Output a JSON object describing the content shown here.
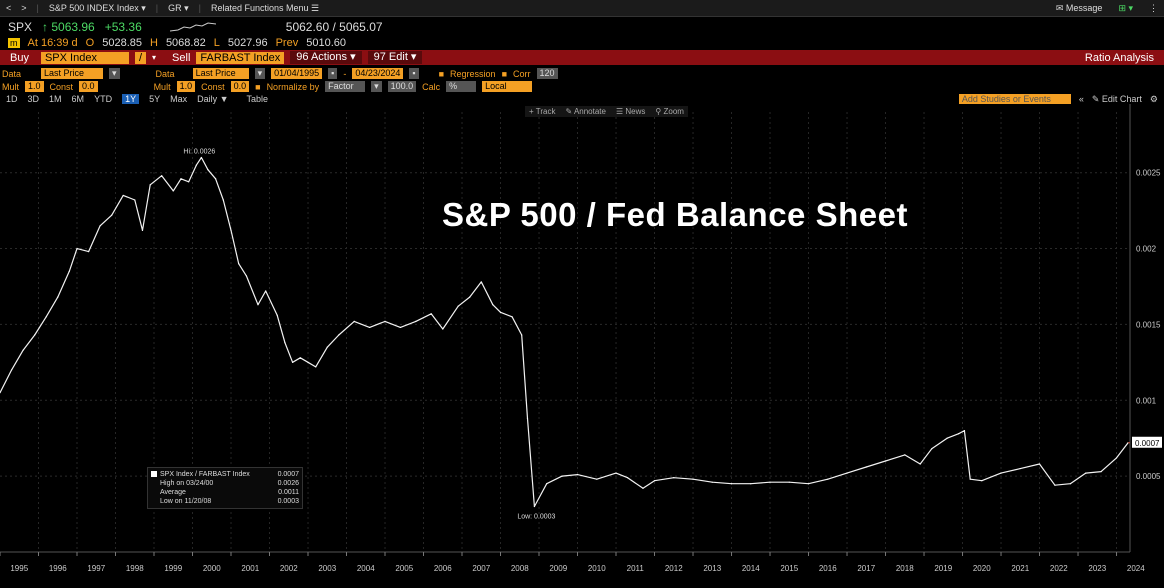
{
  "topnav": {
    "items": [
      "S&P 500 INDEX Index ▾",
      "GR ▾",
      "Related Functions Menu ☰"
    ],
    "message": "Message",
    "nav_back": "<",
    "nav_fwd": ">"
  },
  "quote": {
    "ticker": "SPX",
    "last": "↑ 5063.96",
    "change": "+53.36",
    "bid_ask": "5062.60 / 5065.07",
    "at": "At 16:39 d",
    "open_label": "O",
    "open": "5028.85",
    "high_label": "H",
    "high": "5068.82",
    "low_label": "L",
    "low": "5027.96",
    "prev_label": "Prev",
    "prev": "5010.60"
  },
  "order_bar": {
    "buy": "Buy",
    "buy_security": "SPX Index",
    "sell": "Sell",
    "sell_security": "FARBAST Index",
    "actions": "96 Actions ▾",
    "edit": "97 Edit ▾",
    "right_label": "Ratio Analysis"
  },
  "params1": {
    "data_label": "Data",
    "data_value": "Last Price",
    "data2_label": "Data",
    "data2_value": "Last Price",
    "start": "01/04/1995",
    "end": "04/23/2024",
    "regression": "Regression",
    "corr": "Corr",
    "corr_value": "120"
  },
  "params2": {
    "mult_label": "Mult",
    "mult_value": "1.0",
    "const_label": "Const",
    "const_value": "0.0",
    "mult2_label": "Mult",
    "mult2_value": "1.0",
    "const2_label": "Const",
    "const2_value": "0.0",
    "normalize": "Normalize by",
    "normalize_value": "Factor",
    "factor": "100.0",
    "calc": "Calc",
    "local": "Local"
  },
  "periods": {
    "items": [
      "1D",
      "3D",
      "1M",
      "6M",
      "YTD",
      "1Y",
      "5Y",
      "Max",
      "Daily ▼",
      "Table"
    ],
    "selected": "1Y",
    "add_studies": "Add Studies or Events",
    "edit_chart": "Edit Chart"
  },
  "tools": [
    "Track",
    "Annotate",
    "News",
    "Zoom"
  ],
  "overlay_title": "S&P 500 / Fed Balance Sheet",
  "legend": {
    "rows": [
      {
        "label": "SPX Index / FARBAST Index",
        "value": "0.0007"
      },
      {
        "label": "High on 03/24/00",
        "value": "0.0026"
      },
      {
        "label": "Average",
        "value": "0.0011"
      },
      {
        "label": "Low on 11/20/08",
        "value": "0.0003"
      }
    ]
  },
  "chart_data": {
    "type": "line",
    "title": "S&P 500 / Fed Balance Sheet",
    "xlabel": "",
    "ylabel": "",
    "ylim": [
      0.0,
      0.0029
    ],
    "yticks": [
      0.0005,
      0.001,
      0.0015,
      0.002,
      0.0025
    ],
    "ytick_labels": [
      "0.0005",
      "0.001",
      "0.0015",
      "0.002",
      "0.0025"
    ],
    "xticks": [
      1995,
      1996,
      1997,
      1998,
      1999,
      2000,
      2001,
      2002,
      2003,
      2004,
      2005,
      2006,
      2007,
      2008,
      2009,
      2010,
      2011,
      2012,
      2013,
      2014,
      2015,
      2016,
      2017,
      2018,
      2019,
      2020,
      2021,
      2022,
      2023,
      2024
    ],
    "xlim": [
      1995.0,
      2024.35
    ],
    "high_label": "Hi: 0.0026",
    "low_label": "Low: 0.0003",
    "last_value_label": "0.0007",
    "series": [
      {
        "name": "SPX Index / FARBAST Index",
        "x": [
          1995.0,
          1995.3,
          1995.6,
          1995.9,
          1996.2,
          1996.5,
          1996.8,
          1997.0,
          1997.3,
          1997.6,
          1997.9,
          1998.2,
          1998.5,
          1998.7,
          1998.9,
          1999.2,
          1999.5,
          1999.7,
          1999.9,
          2000.1,
          2000.23,
          2000.4,
          2000.6,
          2000.8,
          2001.0,
          2001.2,
          2001.4,
          2001.7,
          2001.9,
          2002.2,
          2002.4,
          2002.6,
          2002.8,
          2003.0,
          2003.2,
          2003.5,
          2003.8,
          2004.2,
          2004.6,
          2005.0,
          2005.4,
          2005.8,
          2006.2,
          2006.5,
          2006.9,
          2007.2,
          2007.5,
          2007.8,
          2008.0,
          2008.3,
          2008.55,
          2008.7,
          2008.88,
          2009.2,
          2009.6,
          2010.0,
          2010.5,
          2011.0,
          2011.3,
          2011.7,
          2012.0,
          2012.5,
          2013.0,
          2013.5,
          2014.0,
          2014.5,
          2015.0,
          2015.5,
          2016.0,
          2016.5,
          2017.0,
          2017.5,
          2018.0,
          2018.5,
          2018.9,
          2019.2,
          2019.6,
          2019.9,
          2020.05,
          2020.2,
          2020.5,
          2021.0,
          2021.5,
          2022.0,
          2022.4,
          2022.8,
          2023.2,
          2023.6,
          2024.0,
          2024.3
        ],
        "y": [
          0.00105,
          0.0012,
          0.00133,
          0.00143,
          0.00155,
          0.00168,
          0.00185,
          0.002,
          0.00198,
          0.00215,
          0.00222,
          0.00235,
          0.00232,
          0.00212,
          0.00242,
          0.00248,
          0.00238,
          0.00246,
          0.00244,
          0.00255,
          0.0026,
          0.00252,
          0.00246,
          0.00232,
          0.00212,
          0.0019,
          0.00182,
          0.00163,
          0.00172,
          0.00156,
          0.00138,
          0.00125,
          0.00128,
          0.00125,
          0.00122,
          0.00135,
          0.00143,
          0.00152,
          0.00148,
          0.00152,
          0.00148,
          0.00152,
          0.00157,
          0.00147,
          0.00162,
          0.00168,
          0.00178,
          0.00163,
          0.00158,
          0.00155,
          0.00143,
          0.00088,
          0.0003,
          0.00045,
          0.0005,
          0.00051,
          0.00048,
          0.00052,
          0.00049,
          0.00042,
          0.00047,
          0.00049,
          0.00048,
          0.00046,
          0.00045,
          0.00045,
          0.00046,
          0.00046,
          0.00045,
          0.00048,
          0.00052,
          0.00056,
          0.0006,
          0.00064,
          0.00058,
          0.00068,
          0.00075,
          0.00078,
          0.0008,
          0.00048,
          0.00047,
          0.00052,
          0.00055,
          0.00058,
          0.00044,
          0.00045,
          0.00052,
          0.00053,
          0.00062,
          0.00072
        ]
      }
    ]
  }
}
